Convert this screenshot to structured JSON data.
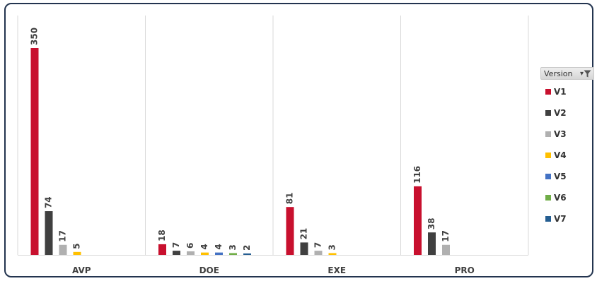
{
  "chart_data": {
    "type": "bar",
    "categories": [
      "AVP",
      "DOE",
      "EXE",
      "PRO"
    ],
    "series": [
      {
        "name": "V1",
        "color": "#c8102e",
        "values": [
          350,
          18,
          81,
          116
        ]
      },
      {
        "name": "V2",
        "color": "#404040",
        "values": [
          74,
          7,
          21,
          38
        ]
      },
      {
        "name": "V3",
        "color": "#b0b0b0",
        "values": [
          17,
          6,
          7,
          17
        ]
      },
      {
        "name": "V4",
        "color": "#ffc000",
        "values": [
          5,
          4,
          3,
          null
        ]
      },
      {
        "name": "V5",
        "color": "#4472c4",
        "values": [
          null,
          4,
          null,
          null
        ]
      },
      {
        "name": "V6",
        "color": "#70ad47",
        "values": [
          null,
          3,
          null,
          null
        ]
      },
      {
        "name": "V7",
        "color": "#255e91",
        "values": [
          null,
          2,
          null,
          null
        ]
      }
    ],
    "ylim": [
      0,
      350
    ],
    "grid": "vertical category separators",
    "data_labels": true,
    "legend_position": "right"
  },
  "legend": {
    "title": "Version",
    "filter_icon": "funnel-filter-icon"
  }
}
